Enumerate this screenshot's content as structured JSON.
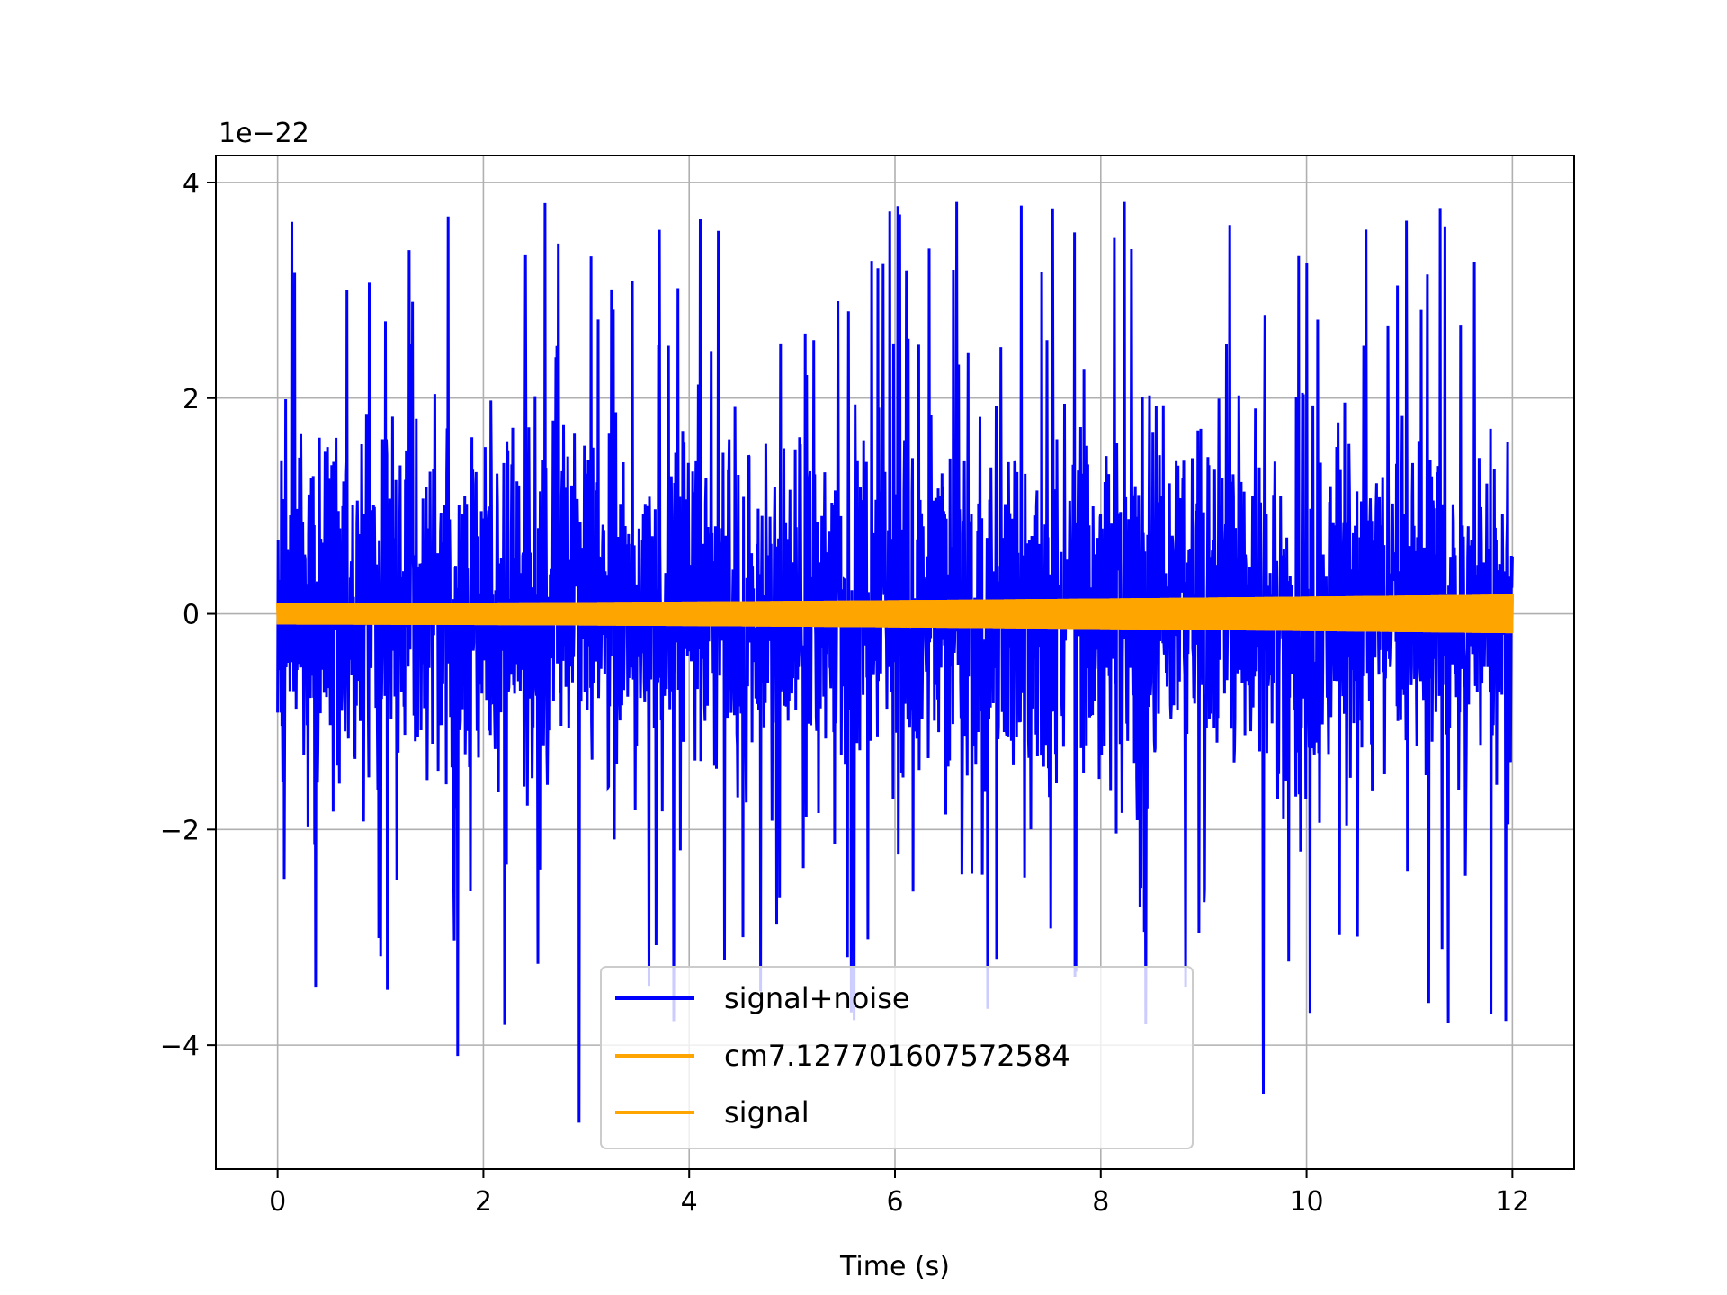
{
  "chart_data": {
    "type": "line",
    "xlabel": "Time (s)",
    "ylabel": "",
    "offset_label": "1e−22",
    "xlim": [
      -0.6,
      12.6
    ],
    "ylim": [
      -5.15,
      4.25
    ],
    "xticks": [
      0,
      2,
      4,
      6,
      8,
      10,
      12
    ],
    "xtick_labels": [
      "0",
      "2",
      "4",
      "6",
      "8",
      "10",
      "12"
    ],
    "yticks": [
      -4,
      -2,
      0,
      2,
      4
    ],
    "ytick_labels": [
      "−4",
      "−2",
      "0",
      "2",
      "4"
    ],
    "grid": true,
    "legend_position": "lower-center",
    "series": [
      {
        "name": "signal+noise",
        "color": "#0000ff",
        "x_range": [
          0,
          12
        ],
        "envelope_approx": {
          "typical_min": -2.4,
          "typical_max": 2.4,
          "max": 3.82,
          "min": -4.72
        }
      },
      {
        "name": "cm7.127701607572584",
        "color": "#ffa500",
        "x_range": [
          0,
          12
        ],
        "amplitude_start": 0.1,
        "amplitude_end": 0.18
      },
      {
        "name": "signal",
        "color": "#ffa500",
        "x_range": [
          0,
          12
        ],
        "amplitude_start": 0.1,
        "amplitude_end": 0.18
      }
    ]
  }
}
